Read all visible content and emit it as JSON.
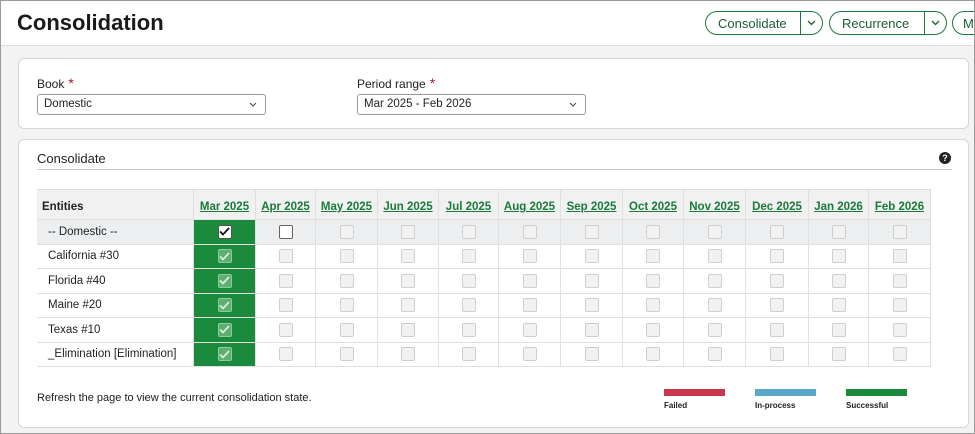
{
  "header": {
    "title": "Consolidation",
    "buttons": [
      "Consolidate",
      "Recurrence",
      "M"
    ]
  },
  "filters": {
    "book": {
      "label": "Book",
      "required": "*",
      "value": "Domestic"
    },
    "period": {
      "label": "Period range",
      "required": "*",
      "value": "Mar 2025 - Feb 2026"
    }
  },
  "panel": {
    "title": "Consolidate",
    "help": "?"
  },
  "table": {
    "corner": "Entities",
    "columns": [
      "Mar 2025",
      "Apr 2025",
      "May 2025",
      "Jun 2025",
      "Jul 2025",
      "Aug 2025",
      "Sep 2025",
      "Oct 2025",
      "Nov 2025",
      "Dec 2025",
      "Jan 2026",
      "Feb 2026"
    ],
    "rows": [
      {
        "name": "-- Domestic --",
        "cells": [
          "checked",
          "unchecked",
          "disabled",
          "disabled",
          "disabled",
          "disabled",
          "disabled",
          "disabled",
          "disabled",
          "disabled",
          "disabled",
          "disabled"
        ]
      },
      {
        "name": "California #30",
        "cells": [
          "checked-disabled",
          "disabled",
          "disabled",
          "disabled",
          "disabled",
          "disabled",
          "disabled",
          "disabled",
          "disabled",
          "disabled",
          "disabled",
          "disabled"
        ]
      },
      {
        "name": "Florida #40",
        "cells": [
          "checked-disabled",
          "disabled",
          "disabled",
          "disabled",
          "disabled",
          "disabled",
          "disabled",
          "disabled",
          "disabled",
          "disabled",
          "disabled",
          "disabled"
        ]
      },
      {
        "name": "Maine #20",
        "cells": [
          "checked-disabled",
          "disabled",
          "disabled",
          "disabled",
          "disabled",
          "disabled",
          "disabled",
          "disabled",
          "disabled",
          "disabled",
          "disabled",
          "disabled"
        ]
      },
      {
        "name": "Texas #10",
        "cells": [
          "checked-disabled",
          "disabled",
          "disabled",
          "disabled",
          "disabled",
          "disabled",
          "disabled",
          "disabled",
          "disabled",
          "disabled",
          "disabled",
          "disabled"
        ]
      },
      {
        "name": "_Elimination [Elimination]",
        "cells": [
          "checked-disabled",
          "disabled",
          "disabled",
          "disabled",
          "disabled",
          "disabled",
          "disabled",
          "disabled",
          "disabled",
          "disabled",
          "disabled",
          "disabled"
        ]
      }
    ]
  },
  "footer": {
    "note": "Refresh the page to view the current consolidation state.",
    "legend": [
      {
        "label": "Failed",
        "color": "#c8374a"
      },
      {
        "label": "In-process",
        "color": "#5ba7c9"
      },
      {
        "label": "Successful",
        "color": "#1b8a3c"
      }
    ]
  }
}
